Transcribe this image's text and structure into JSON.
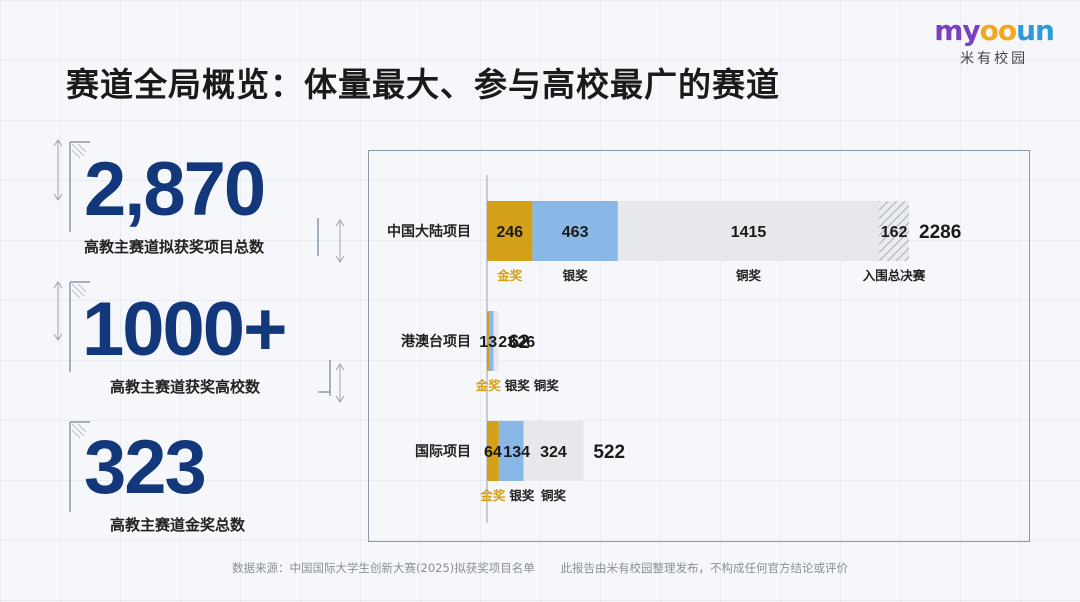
{
  "title": "赛道全局概览：体量最大、参与高校最广的赛道",
  "logo": {
    "word": [
      "my",
      "oo",
      "un"
    ],
    "sub": "米有校园"
  },
  "stats": [
    {
      "value": "2,870",
      "label": "高教主赛道拟获奖项目总数"
    },
    {
      "value": "1000+",
      "label": "高教主赛道获奖高校数"
    },
    {
      "value": "323",
      "label": "高教主赛道金奖总数"
    }
  ],
  "colors": {
    "gold": "#d4a017",
    "silver": "#89b7e8",
    "bronze": "#e6e8eb",
    "final": "#e9ebee",
    "navy": "#12377a",
    "logo_m": "#7b3fbf",
    "logo_y": "#e8402f",
    "logo_o": "#f2a81d",
    "logo_un": "#2e9bd6"
  },
  "chart_data": {
    "type": "bar",
    "orientation": "horizontal",
    "stacked": true,
    "categories": [
      "中国大陆项目",
      "港澳台项目",
      "国际项目"
    ],
    "series": [
      {
        "name": "金奖",
        "values": [
          246,
          13,
          64
        ],
        "color": "#d4a017"
      },
      {
        "name": "银奖",
        "values": [
          463,
          23,
          134
        ],
        "color": "#89b7e8"
      },
      {
        "name": "铜奖",
        "values": [
          1415,
          26,
          324
        ],
        "color": "#e6e8eb"
      },
      {
        "name": "入围总决赛",
        "values": [
          162,
          null,
          null
        ],
        "color": "#e9ebee",
        "pattern": "hatched"
      }
    ],
    "totals": [
      2286,
      62,
      522
    ],
    "series_labels_under_bars": true
  },
  "source": {
    "left": "数据来源：中国国际大学生创新大赛(2025)拟获奖项目名单",
    "right": "此报告由米有校园整理发布，不构成任何官方结论或评价"
  }
}
